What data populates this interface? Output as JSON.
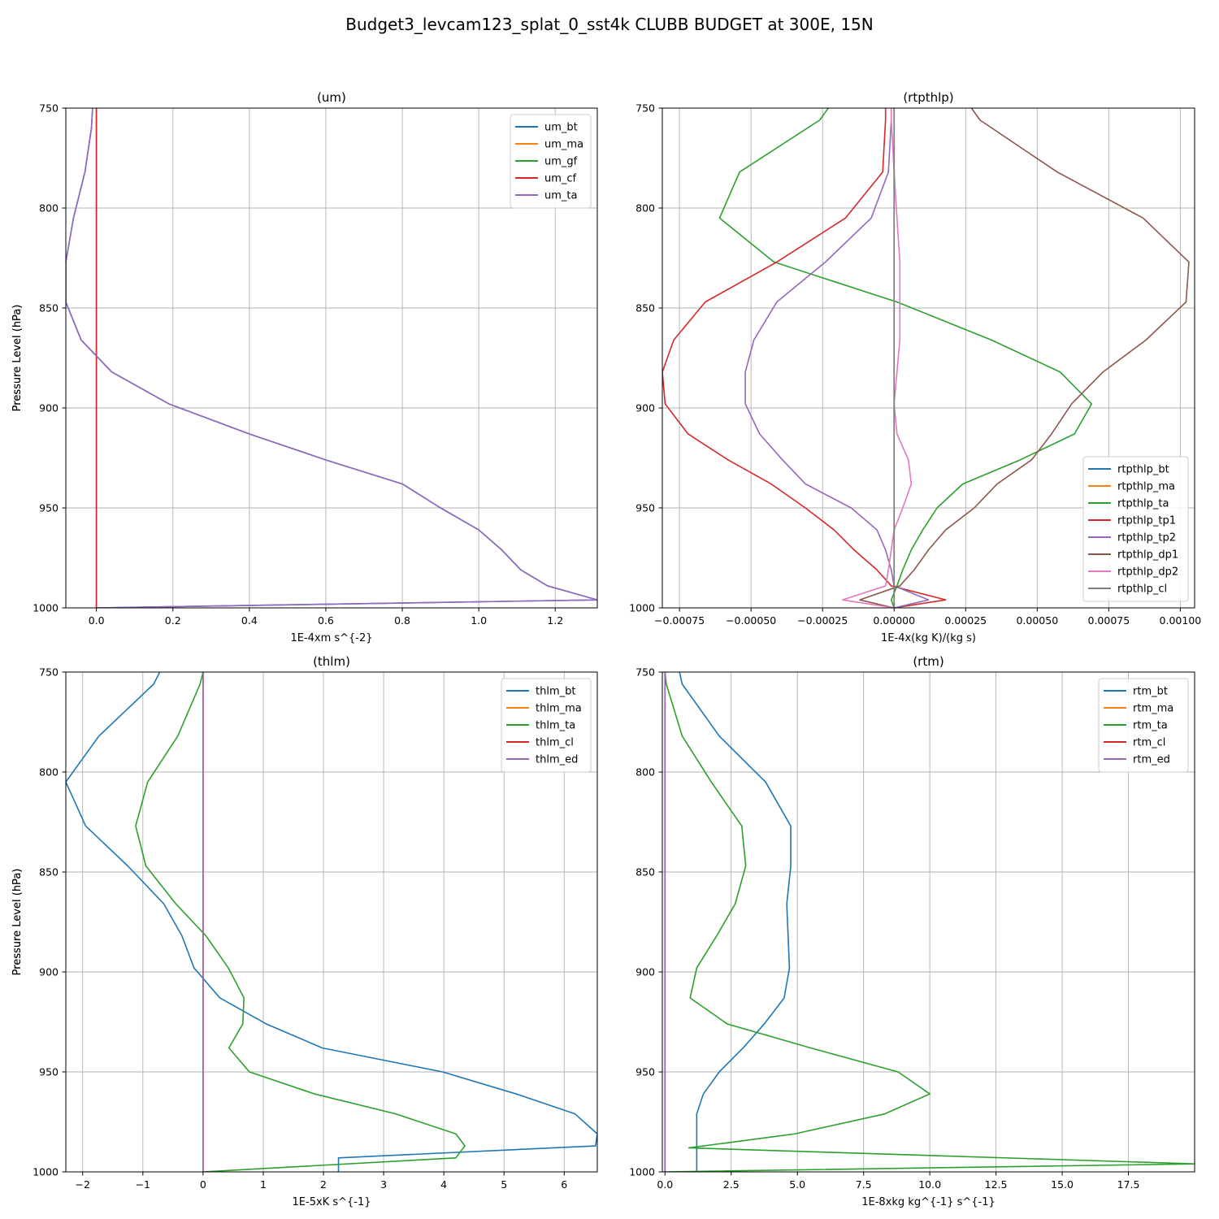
{
  "title": "Budget3_levcam123_splat_0_sst4k CLUBB BUDGET at 300E, 15N",
  "colors": {
    "c0": "#1f77b4",
    "c1": "#ff7f0e",
    "c2": "#2ca02c",
    "c3": "#d62728",
    "c4": "#9467bd",
    "c5": "#8c564b",
    "c6": "#e377c2",
    "c7": "#7f7f7f"
  },
  "chart_data": [
    {
      "type": "line",
      "title": "(um)",
      "xlabel": "1E-4xm s^{-2}",
      "ylabel": "Pressure Level (hPa)",
      "xlim": [
        -0.08,
        1.31
      ],
      "ylim": [
        1000,
        750
      ],
      "xticks": [
        0.0,
        0.2,
        0.4,
        0.6,
        0.8,
        1.0,
        1.2
      ],
      "xtick_labels": [
        "0.0",
        "0.2",
        "0.4",
        "0.6",
        "0.8",
        "1.0",
        "1.2"
      ],
      "yticks": [
        750,
        800,
        850,
        900,
        950,
        1000
      ],
      "legend": "top-right",
      "grid": true,
      "y": [
        750,
        760,
        782,
        805,
        827,
        847,
        866,
        882,
        898,
        913,
        926,
        938,
        950,
        961,
        971,
        981,
        989,
        996,
        1000
      ],
      "series": [
        {
          "name": "um_bt",
          "color": "c0",
          "values": [
            -0.01,
            -0.013,
            -0.03,
            -0.06,
            -0.08,
            -0.08,
            -0.04,
            0.04,
            0.19,
            0.4,
            0.6,
            0.8,
            0.9,
            1.0,
            1.06,
            1.11,
            1.18,
            1.31,
            0.0
          ]
        },
        {
          "name": "um_ma",
          "color": "c1",
          "values": [
            0,
            0,
            0,
            0,
            0,
            0,
            0,
            0,
            0,
            0,
            0,
            0,
            0,
            0,
            0,
            0,
            0,
            0,
            0
          ]
        },
        {
          "name": "um_gf",
          "color": "c2",
          "values": [
            0,
            0,
            0,
            0,
            0,
            0,
            0,
            0,
            0,
            0,
            0,
            0,
            0,
            0,
            0,
            0,
            0,
            0,
            0
          ]
        },
        {
          "name": "um_cf",
          "color": "c3",
          "values": [
            0,
            0,
            0,
            0,
            0,
            0,
            0,
            0,
            0,
            0,
            0,
            0,
            0,
            0,
            0,
            0,
            0,
            0,
            0
          ]
        },
        {
          "name": "um_ta",
          "color": "c4",
          "values": [
            -0.01,
            -0.013,
            -0.03,
            -0.06,
            -0.08,
            -0.08,
            -0.04,
            0.04,
            0.19,
            0.4,
            0.6,
            0.8,
            0.9,
            1.0,
            1.06,
            1.11,
            1.18,
            1.31,
            0.0
          ]
        }
      ]
    },
    {
      "type": "line",
      "title": "(rtpthlp)",
      "xlabel": "1E-4x(kg K)/(kg s)",
      "ylabel": "Pressure Level (hPa)",
      "xlim": [
        -0.00081,
        0.00105
      ],
      "ylim": [
        1000,
        750
      ],
      "xticks": [
        -0.00075,
        -0.0005,
        -0.00025,
        0.0,
        0.00025,
        0.0005,
        0.00075,
        0.001
      ],
      "xtick_labels": [
        "−0.00075",
        "−0.00050",
        "−0.00025",
        "0.00000",
        "0.00025",
        "0.00050",
        "0.00075",
        "0.00100"
      ],
      "yticks": [
        750,
        800,
        850,
        900,
        950,
        1000
      ],
      "legend": "bottom-right",
      "grid": true,
      "y": [
        750,
        756,
        782,
        805,
        827,
        847,
        866,
        882,
        898,
        913,
        926,
        938,
        950,
        961,
        971,
        981,
        989,
        996,
        1000
      ],
      "series": [
        {
          "name": "rtpthlp_bt",
          "color": "c0",
          "values": [
            0,
            0,
            0,
            0,
            0,
            0,
            0,
            0,
            0,
            0,
            0,
            0,
            0,
            0,
            0,
            0,
            0,
            0,
            0
          ]
        },
        {
          "name": "rtpthlp_ma",
          "color": "c1",
          "values": [
            0,
            0,
            0,
            0,
            0,
            0,
            0,
            0,
            0,
            0,
            0,
            0,
            0,
            0,
            0,
            0,
            0,
            0,
            0
          ]
        },
        {
          "name": "rtpthlp_ta",
          "color": "c2",
          "values": [
            -0.00023,
            -0.00026,
            -0.00054,
            -0.00061,
            -0.00042,
            1e-05,
            0.00034,
            0.00058,
            0.00069,
            0.00063,
            0.00044,
            0.00024,
            0.00015,
            0.0001,
            6e-05,
            3e-05,
            1e-05,
            -1e-05,
            0.0
          ]
        },
        {
          "name": "rtpthlp_tp1",
          "color": "c3",
          "values": [
            -3e-05,
            -3e-05,
            -4e-05,
            -0.00017,
            -0.00041,
            -0.00066,
            -0.00077,
            -0.00081,
            -0.0008,
            -0.00072,
            -0.00058,
            -0.00043,
            -0.00031,
            -0.00021,
            -0.00014,
            -6e-05,
            -1e-05,
            0.00018,
            0.0
          ]
        },
        {
          "name": "rtpthlp_tp2",
          "color": "c4",
          "values": [
            -1e-05,
            -1e-05,
            -2e-05,
            -8e-05,
            -0.00024,
            -0.00041,
            -0.00049,
            -0.00052,
            -0.00052,
            -0.00047,
            -0.00039,
            -0.00031,
            -0.00015,
            -6e-05,
            -3e-05,
            -1e-05,
            0.0,
            0.00012,
            0.0
          ]
        },
        {
          "name": "rtpthlp_dp1",
          "color": "c5",
          "values": [
            0.00027,
            0.0003,
            0.00057,
            0.00087,
            0.00103,
            0.00102,
            0.00088,
            0.00073,
            0.00062,
            0.00055,
            0.00048,
            0.00036,
            0.00028,
            0.00018,
            0.00012,
            7e-05,
            2e-05,
            -0.00012,
            0.0
          ]
        },
        {
          "name": "rtpthlp_dp2",
          "color": "c6",
          "values": [
            -1e-05,
            -1e-05,
            0.0,
            1e-05,
            2e-05,
            2e-05,
            2e-05,
            1e-05,
            0.0,
            1e-05,
            5e-05,
            6e-05,
            3e-05,
            0.0,
            -1e-05,
            -2e-05,
            -3e-05,
            -0.00018,
            0.0
          ]
        },
        {
          "name": "rtpthlp_cl",
          "color": "c7",
          "values": [
            0,
            0,
            0,
            0,
            0,
            0,
            0,
            0,
            0,
            0,
            0,
            0,
            0,
            0,
            0,
            0,
            0,
            0,
            0
          ]
        }
      ]
    },
    {
      "type": "line",
      "title": "(thlm)",
      "xlabel": "1E-5xK s^{-1}",
      "ylabel": "Pressure Level (hPa)",
      "xlim": [
        -2.28,
        6.55
      ],
      "ylim": [
        1000,
        750
      ],
      "xticks": [
        -2,
        -1,
        0,
        1,
        2,
        3,
        4,
        5,
        6
      ],
      "xtick_labels": [
        "−2",
        "−1",
        "0",
        "1",
        "2",
        "3",
        "4",
        "5",
        "6"
      ],
      "yticks": [
        750,
        800,
        850,
        900,
        950,
        1000
      ],
      "legend": "top-right",
      "grid": true,
      "y": [
        750,
        756,
        782,
        805,
        827,
        847,
        866,
        882,
        898,
        913,
        926,
        938,
        950,
        961,
        971,
        981,
        987,
        993,
        1000
      ],
      "series": [
        {
          "name": "thlm_bt",
          "color": "c0",
          "values": [
            -0.72,
            -0.82,
            -1.73,
            -2.28,
            -1.95,
            -1.25,
            -0.65,
            -0.35,
            -0.15,
            0.28,
            1.05,
            1.98,
            3.98,
            5.2,
            6.18,
            6.55,
            6.52,
            2.25,
            2.25
          ]
        },
        {
          "name": "thlm_ma",
          "color": "c1",
          "values": [
            0,
            0,
            0,
            0,
            0,
            0,
            0,
            0,
            0,
            0,
            0,
            0,
            0,
            0,
            0,
            0,
            0,
            0,
            0
          ]
        },
        {
          "name": "thlm_ta",
          "color": "c2",
          "values": [
            0.0,
            -0.05,
            -0.42,
            -0.92,
            -1.12,
            -0.95,
            -0.45,
            0.05,
            0.42,
            0.68,
            0.66,
            0.43,
            0.77,
            1.85,
            3.2,
            4.2,
            4.35,
            4.2,
            0.0
          ]
        },
        {
          "name": "thlm_cl",
          "color": "c3",
          "values": [
            0,
            0,
            0,
            0,
            0,
            0,
            0,
            0,
            0,
            0,
            0,
            0,
            0,
            0,
            0,
            0,
            0,
            0,
            0
          ]
        },
        {
          "name": "thlm_ed",
          "color": "c4",
          "values": [
            0,
            0,
            0,
            0,
            0,
            0,
            0,
            0,
            0,
            0,
            0,
            0,
            0,
            0,
            0,
            0,
            0,
            0,
            0
          ]
        }
      ]
    },
    {
      "type": "line",
      "title": "(rtm)",
      "xlabel": "1E-8xkg kg^{-1} s^{-1}",
      "ylabel": "Pressure Level (hPa)",
      "xlim": [
        -0.1,
        20.0
      ],
      "ylim": [
        1000,
        750
      ],
      "xticks": [
        0.0,
        2.5,
        5.0,
        7.5,
        10.0,
        12.5,
        15.0,
        17.5
      ],
      "xtick_labels": [
        "0.0",
        "2.5",
        "5.0",
        "7.5",
        "10.0",
        "12.5",
        "15.0",
        "17.5"
      ],
      "yticks": [
        750,
        800,
        850,
        900,
        950,
        1000
      ],
      "legend": "top-right",
      "grid": true,
      "y": [
        750,
        756,
        782,
        805,
        827,
        847,
        866,
        882,
        898,
        913,
        926,
        938,
        950,
        961,
        971,
        981,
        988,
        996,
        1000
      ],
      "series": [
        {
          "name": "rtm_bt",
          "color": "c0",
          "values": [
            0.55,
            0.65,
            2.05,
            3.8,
            4.75,
            4.75,
            4.6,
            4.65,
            4.7,
            4.5,
            3.75,
            2.95,
            2.05,
            1.45,
            1.2,
            1.2,
            1.2,
            1.2,
            1.2
          ]
        },
        {
          "name": "rtm_ma",
          "color": "c1",
          "values": [
            0,
            0,
            0,
            0,
            0,
            0,
            0,
            0,
            0,
            0,
            0,
            0,
            0,
            0,
            0,
            0,
            0,
            0,
            0
          ]
        },
        {
          "name": "rtm_ta",
          "color": "c2",
          "values": [
            0.0,
            0.05,
            0.65,
            1.75,
            2.9,
            3.05,
            2.65,
            1.95,
            1.2,
            0.95,
            2.35,
            5.5,
            8.8,
            10.0,
            8.3,
            4.9,
            0.9,
            20.0,
            0.0
          ]
        },
        {
          "name": "rtm_cl",
          "color": "c3",
          "values": [
            0,
            0,
            0,
            0,
            0,
            0,
            0,
            0,
            0,
            0,
            0,
            0,
            0,
            0,
            0,
            0,
            0,
            0,
            0
          ]
        },
        {
          "name": "rtm_ed",
          "color": "c4",
          "values": [
            0,
            0,
            0,
            0,
            0,
            0,
            0,
            0,
            0,
            0,
            0,
            0,
            0,
            0,
            0,
            0,
            0,
            0,
            0
          ]
        }
      ]
    }
  ]
}
